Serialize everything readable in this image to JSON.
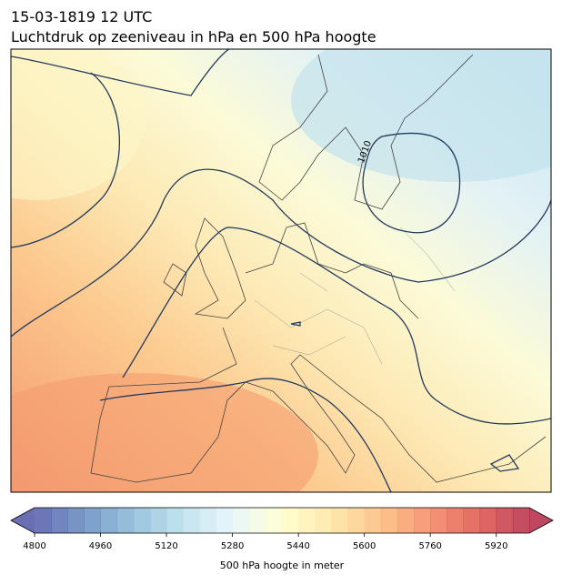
{
  "header": {
    "title": "15-03-1819 12 UTC",
    "subtitle": "Luchtdruk op zeeniveau in hPa en 500 hPa hoogte"
  },
  "map": {
    "contour_label": "1010"
  },
  "colorbar": {
    "label": "500 hPa hoogte in meter",
    "lim": [
      4800,
      6000
    ],
    "step": 40,
    "ticks": [
      4800,
      4960,
      5120,
      5280,
      5440,
      5600,
      5760,
      5920
    ],
    "colors": [
      "#313695",
      "#4575b4",
      "#74add1",
      "#abd9e9",
      "#e0f3f8",
      "#ffffbf",
      "#fee090",
      "#fdae61",
      "#f46d43",
      "#d73027",
      "#a50026"
    ],
    "opacity": 0.72
  }
}
